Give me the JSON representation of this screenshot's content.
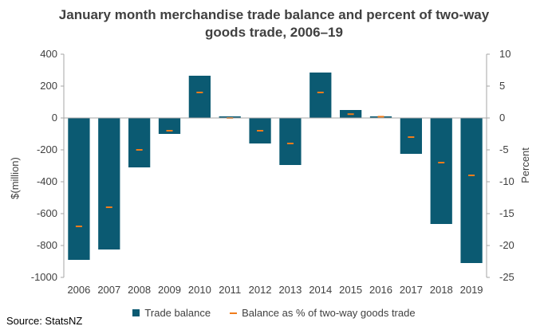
{
  "chart_data": {
    "type": "bar",
    "title": "January month merchandise trade balance and percent of two-way goods trade, 2006–19",
    "title_lines": [
      "January month merchandise trade balance and percent of two-way",
      "goods trade, 2006–19"
    ],
    "categories": [
      "2006",
      "2007",
      "2008",
      "2009",
      "2010",
      "2011",
      "2012",
      "2013",
      "2014",
      "2015",
      "2016",
      "2017",
      "2018",
      "2019"
    ],
    "series": [
      {
        "name": "Trade balance",
        "type": "bar",
        "axis": "left",
        "color": "#0b5a72",
        "values": [
          -890,
          -825,
          -310,
          -100,
          265,
          10,
          -160,
          -295,
          285,
          50,
          10,
          -225,
          -665,
          -910
        ]
      },
      {
        "name": "Balance as % of two-way goods trade",
        "type": "marker",
        "axis": "right",
        "color": "#f07c1b",
        "values": [
          -17,
          -14,
          -5,
          -2,
          4,
          0,
          -2,
          -4,
          4,
          0.6,
          0.2,
          -3,
          -7,
          -9
        ]
      }
    ],
    "ylabel": "$(million)",
    "ylabel_right": "Percent",
    "ylim": [
      -1000,
      400
    ],
    "ylim_right": [
      -25,
      10
    ],
    "yticks": [
      "400",
      "200",
      "0",
      "-200",
      "-400",
      "-600",
      "-800",
      "-1000"
    ],
    "yticks_right": [
      "10",
      "5",
      "0",
      "-5",
      "-10",
      "-15",
      "-20",
      "-25"
    ],
    "grid": false,
    "legend": "bottom"
  },
  "source": "Source: StatsNZ",
  "colors": {
    "axis": "#a6a6a6",
    "text": "#404040"
  }
}
